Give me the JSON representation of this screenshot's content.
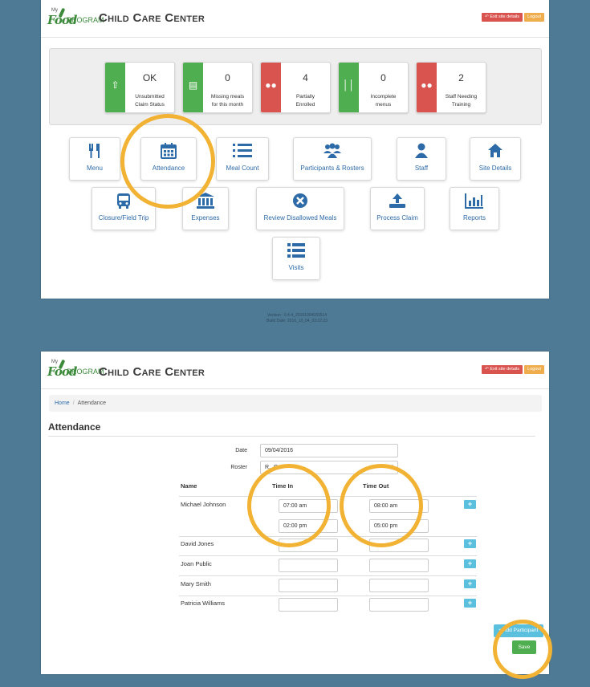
{
  "brand": {
    "logo_my": "My",
    "logo_food": "Food",
    "logo_program": "PROGRAM"
  },
  "header": {
    "title": "Child Care Center",
    "exit_label": "Exit site details",
    "logout_label": "Logout"
  },
  "stats": [
    {
      "value": "OK",
      "label_line1": "Unsubmitted",
      "label_line2": "Claim Status",
      "color": "#4fae4f",
      "icon": "upload-icon"
    },
    {
      "value": "0",
      "label_line1": "Missing meals",
      "label_line2": "for this month",
      "color": "#4fae4f",
      "icon": "bar-chart-icon"
    },
    {
      "value": "4",
      "label_line1": "Partially",
      "label_line2": "Enrolled",
      "color": "#d9534f",
      "icon": "group-icon"
    },
    {
      "value": "0",
      "label_line1": "Incomplete",
      "label_line2": "menus",
      "color": "#4fae4f",
      "icon": "utensils-icon"
    },
    {
      "value": "2",
      "label_line1": "Staff Needing",
      "label_line2": "Training",
      "color": "#d9534f",
      "icon": "group-icon"
    }
  ],
  "tiles": [
    {
      "label": "Menu",
      "icon": "utensils-icon"
    },
    {
      "label": "Attendance",
      "icon": "calendar-icon"
    },
    {
      "label": "Meal Count",
      "icon": "numbered-list-icon"
    },
    {
      "label": "Participants & Rosters",
      "icon": "group-icon"
    },
    {
      "label": "Staff",
      "icon": "user-icon"
    },
    {
      "label": "Site Details",
      "icon": "home-icon"
    },
    {
      "label": "Closure/Field Trip",
      "icon": "bus-icon"
    },
    {
      "label": "Expenses",
      "icon": "bank-icon"
    },
    {
      "label": "Review Disallowed Meals",
      "icon": "times-circle-icon"
    },
    {
      "label": "Process Claim",
      "icon": "upload-icon"
    },
    {
      "label": "Reports",
      "icon": "bar-chart-icon"
    },
    {
      "label": "Visits",
      "icon": "list-icon"
    }
  ],
  "version": {
    "line1": "Version : 0.4-4_20161004031514",
    "line2": "Build Date: 2016_10_04_03:22:23"
  },
  "breadcrumb": {
    "home": "Home",
    "current": "Attendance"
  },
  "attendance": {
    "title": "Attendance",
    "date_label": "Date",
    "date_value": "09/04/2016",
    "roster_label": "Roster",
    "roster_value": "R...G",
    "columns": {
      "name": "Name",
      "time_in": "Time In",
      "time_out": "Time Out"
    },
    "rows": [
      {
        "name": "Michael Johnson",
        "entries": [
          {
            "in": "07:00 am",
            "out": "08:00 am"
          },
          {
            "in": "02:00 pm",
            "out": "05:00 pm"
          }
        ]
      },
      {
        "name": "David Jones",
        "entries": [
          {
            "in": "",
            "out": ""
          }
        ]
      },
      {
        "name": "Joan Public",
        "entries": [
          {
            "in": "",
            "out": ""
          }
        ]
      },
      {
        "name": "Mary Smith",
        "entries": [
          {
            "in": "",
            "out": ""
          }
        ]
      },
      {
        "name": "Patricia Williams",
        "entries": [
          {
            "in": "",
            "out": ""
          }
        ]
      }
    ],
    "add_participant_label": "+ Add Participant",
    "save_label": "Save"
  },
  "colors": {
    "background": "#4f7a95",
    "highlight_ring": "#f2b335",
    "link_blue": "#2d6aa8",
    "green": "#4fae4f",
    "red": "#d9534f",
    "info": "#5bc0de"
  }
}
